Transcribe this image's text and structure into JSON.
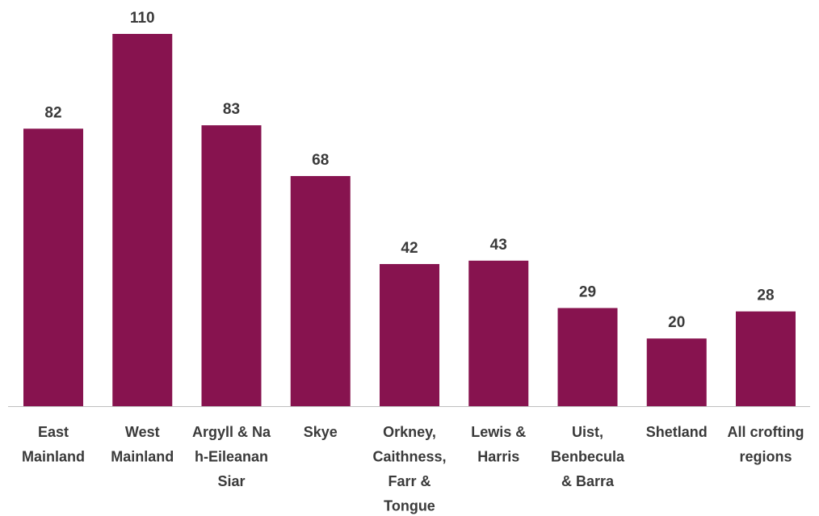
{
  "chart_data": {
    "type": "bar",
    "title": "",
    "xlabel": "",
    "ylabel": "",
    "categories": [
      [
        "East",
        "Mainland"
      ],
      [
        "West",
        "Mainland"
      ],
      [
        "Argyll & Na",
        "h-Eileanan",
        "Siar"
      ],
      [
        "Skye"
      ],
      [
        "Orkney,",
        "Caithness,",
        "Farr &",
        "Tongue"
      ],
      [
        "Lewis &",
        "Harris"
      ],
      [
        "Uist,",
        "Benbecula",
        "& Barra"
      ],
      [
        "Shetland"
      ],
      [
        "All crofting",
        "regions"
      ]
    ],
    "values": [
      82,
      110,
      83,
      68,
      42,
      43,
      29,
      20,
      28
    ],
    "ylim": [
      0,
      110
    ],
    "grid": false,
    "legend": "none",
    "bar_color": "#87134f",
    "axis_color": "#bfbfbf"
  }
}
